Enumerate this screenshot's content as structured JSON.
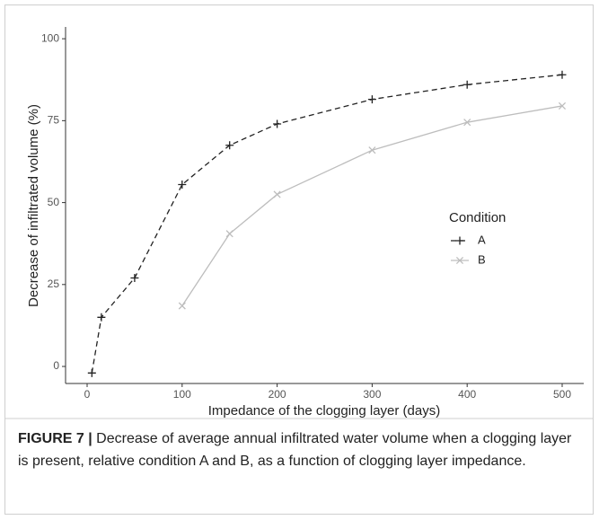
{
  "chart_data": {
    "type": "line",
    "x_label": "Impedance of the clogging layer (days)",
    "y_label": "Decrease of infiltrated volume (%)",
    "x": [
      5,
      15,
      50,
      100,
      150,
      200,
      300,
      400,
      500
    ],
    "series": [
      {
        "name": "A",
        "color": "#222222",
        "dash": true,
        "marker": "plus",
        "values": [
          -2,
          15,
          27,
          55.5,
          67.5,
          74,
          81.5,
          86,
          89
        ]
      },
      {
        "name": "B",
        "color": "#bdbdbd",
        "dash": false,
        "marker": "cross",
        "values": [
          null,
          null,
          null,
          18.5,
          40.5,
          52.5,
          66,
          74.5,
          79.5
        ]
      }
    ],
    "legend_title": "Condition",
    "xlim": [
      -22.7,
      522.7
    ],
    "xticks": [
      0,
      100,
      200,
      300,
      400,
      500
    ],
    "ylim": [
      -5.2,
      103.6
    ],
    "yticks": [
      0,
      25,
      50,
      75,
      100
    ],
    "grid": false
  },
  "caption": {
    "label": "FIGURE 7 |",
    "text": "Decrease of average annual infiltrated water volume when a clogging layer is present, relative condition A and B, as a function of clogging layer impedance."
  }
}
